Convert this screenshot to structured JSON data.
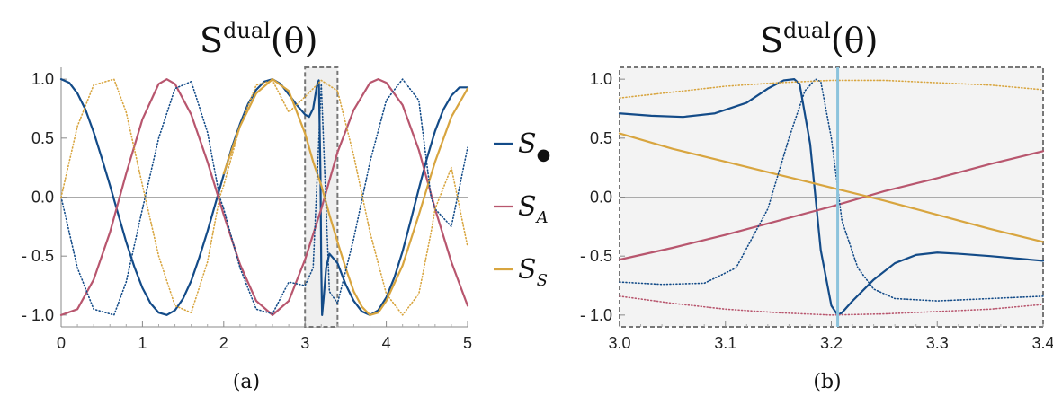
{
  "chart_data": [
    {
      "type": "line",
      "panel_caption": "(a)",
      "title_base": "S",
      "title_sup": "dual",
      "title_arg": "(θ)",
      "xlim": [
        0,
        5
      ],
      "ylim": [
        -1.1,
        1.1
      ],
      "x_ticks": [
        0,
        1,
        2,
        3,
        4,
        5
      ],
      "x_tick_labels": [
        "0",
        "1",
        "2",
        "3",
        "4",
        "5"
      ],
      "y_ticks": [
        1.0,
        0.5,
        0.0,
        -0.5,
        -1.0
      ],
      "y_tick_labels": [
        "1.0",
        "0.5",
        "0.0",
        "- 0.5",
        "- 1.0"
      ],
      "zoom_box": {
        "x": [
          3.0,
          3.4
        ],
        "y": [
          -1.1,
          1.1
        ]
      },
      "series": [
        {
          "color": "#134b88",
          "style": "solid",
          "x": [
            0,
            0.1,
            0.2,
            0.3,
            0.4,
            0.5,
            0.6,
            0.7,
            0.8,
            0.9,
            1.0,
            1.1,
            1.2,
            1.3,
            1.4,
            1.5,
            1.6,
            1.7,
            1.8,
            1.9,
            2.0,
            2.1,
            2.2,
            2.3,
            2.4,
            2.5,
            2.6,
            2.7,
            2.8,
            2.9,
            3.0,
            3.05,
            3.1,
            3.15,
            3.17,
            3.19,
            3.2,
            3.21,
            3.23,
            3.26,
            3.3,
            3.4,
            3.5,
            3.6,
            3.7,
            3.8,
            3.9,
            4.0,
            4.1,
            4.2,
            4.3,
            4.4,
            4.5,
            4.6,
            4.7,
            4.8,
            4.9,
            5.0
          ],
          "y": [
            1.0,
            0.97,
            0.88,
            0.74,
            0.55,
            0.33,
            0.1,
            -0.14,
            -0.38,
            -0.59,
            -0.77,
            -0.9,
            -0.98,
            -1.0,
            -0.96,
            -0.86,
            -0.71,
            -0.51,
            -0.29,
            -0.05,
            0.19,
            0.42,
            0.62,
            0.79,
            0.91,
            0.98,
            1.0,
            0.96,
            0.87,
            0.78,
            0.7,
            0.68,
            0.75,
            0.96,
            0.99,
            0.2,
            -0.6,
            -1.0,
            -0.85,
            -0.6,
            -0.48,
            -0.56,
            -0.74,
            -0.88,
            -0.97,
            -1.0,
            -0.96,
            -0.85,
            -0.68,
            -0.46,
            -0.2,
            0.07,
            0.33,
            0.56,
            0.74,
            0.86,
            0.93,
            0.93
          ]
        },
        {
          "color": "#b8566e",
          "style": "solid",
          "x": [
            0,
            0.2,
            0.4,
            0.6,
            0.8,
            1.0,
            1.2,
            1.3,
            1.4,
            1.6,
            1.8,
            2.0,
            2.2,
            2.4,
            2.6,
            2.8,
            3.0,
            3.2,
            3.4,
            3.6,
            3.8,
            3.9,
            4.0,
            4.2,
            4.4,
            4.6,
            4.8,
            5.0
          ],
          "y": [
            -1.0,
            -0.95,
            -0.7,
            -0.3,
            0.2,
            0.66,
            0.96,
            1.0,
            0.96,
            0.7,
            0.3,
            -0.15,
            -0.57,
            -0.88,
            -1.0,
            -0.88,
            -0.53,
            -0.1,
            0.38,
            0.74,
            0.97,
            1.0,
            0.97,
            0.78,
            0.4,
            -0.1,
            -0.55,
            -0.92
          ]
        },
        {
          "color": "#d8a53f",
          "style": "solid",
          "x": [
            2.0,
            2.2,
            2.4,
            2.6,
            2.8,
            3.0,
            3.1,
            3.2,
            3.3,
            3.4,
            3.5,
            3.6,
            3.7,
            3.8,
            3.9,
            4.0,
            4.2,
            4.4,
            4.6,
            4.8,
            5.0
          ],
          "y": [
            0.2,
            0.6,
            0.88,
            1.0,
            0.9,
            0.54,
            0.3,
            0.1,
            -0.15,
            -0.38,
            -0.6,
            -0.8,
            -0.93,
            -1.0,
            -0.98,
            -0.88,
            -0.58,
            -0.15,
            0.3,
            0.68,
            0.92
          ]
        },
        {
          "color": "#134b88",
          "style": "dotted",
          "x": [
            0,
            0.2,
            0.4,
            0.6,
            0.65,
            0.8,
            1.0,
            1.2,
            1.4,
            1.6,
            1.8,
            1.95,
            2.0,
            2.2,
            2.4,
            2.6,
            2.8,
            3.0,
            3.1,
            3.2,
            3.3,
            3.4,
            3.6,
            3.8,
            4.0,
            4.2,
            4.4,
            4.55,
            4.6,
            4.8,
            5.0
          ],
          "y": [
            0.0,
            -0.6,
            -0.95,
            -0.99,
            -1.0,
            -0.72,
            -0.1,
            0.5,
            0.92,
            0.98,
            0.55,
            0.0,
            -0.1,
            -0.6,
            -0.95,
            -0.99,
            -0.72,
            -0.75,
            -0.6,
            0.96,
            -0.8,
            -0.9,
            -0.35,
            0.3,
            0.82,
            1.0,
            0.82,
            0.0,
            -0.1,
            -0.25,
            0.42
          ]
        },
        {
          "color": "#d8a53f",
          "style": "dotted",
          "x": [
            0,
            0.2,
            0.4,
            0.6,
            0.65,
            0.8,
            1.0,
            1.2,
            1.4,
            1.6,
            1.8,
            1.95,
            2.0,
            2.2,
            2.4,
            2.6,
            2.8,
            3.0,
            3.2,
            3.4,
            3.6,
            3.8,
            4.0,
            4.2,
            4.4,
            4.55,
            4.6,
            4.8,
            5.0
          ],
          "y": [
            0.0,
            0.6,
            0.95,
            0.99,
            1.0,
            0.72,
            0.1,
            -0.5,
            -0.92,
            -0.98,
            -0.55,
            0.0,
            0.1,
            0.6,
            0.95,
            0.99,
            0.72,
            0.85,
            0.99,
            0.9,
            0.35,
            -0.3,
            -0.82,
            -1.0,
            -0.82,
            -0.3,
            -0.1,
            0.25,
            -0.42
          ]
        }
      ]
    },
    {
      "type": "line",
      "panel_caption": "(b)",
      "title_base": "S",
      "title_sup": "dual",
      "title_arg": "(θ)",
      "xlim": [
        3.0,
        3.4
      ],
      "ylim": [
        -1.1,
        1.1
      ],
      "x_ticks": [
        3.0,
        3.1,
        3.2,
        3.3,
        3.4
      ],
      "x_tick_labels": [
        "3.0",
        "3.1",
        "3.2",
        "3.3",
        "3.4"
      ],
      "y_ticks": [
        1.0,
        0.5,
        0.0,
        -0.5,
        -1.0
      ],
      "y_tick_labels": [
        "1.0",
        "0.5",
        "0.0",
        "- 0.5",
        "- 1.0"
      ],
      "vertical_marker_x": 3.206,
      "vertical_marker_color": "#8cc3dc",
      "series": [
        {
          "color": "#134b88",
          "style": "solid",
          "x": [
            3.0,
            3.03,
            3.06,
            3.09,
            3.12,
            3.14,
            3.155,
            3.165,
            3.17,
            3.18,
            3.19,
            3.2,
            3.206,
            3.21,
            3.22,
            3.24,
            3.26,
            3.28,
            3.3,
            3.32,
            3.35,
            3.4
          ],
          "y": [
            0.71,
            0.69,
            0.68,
            0.71,
            0.8,
            0.92,
            0.99,
            1.0,
            0.96,
            0.45,
            -0.45,
            -0.92,
            -1.0,
            -0.98,
            -0.88,
            -0.7,
            -0.56,
            -0.49,
            -0.47,
            -0.48,
            -0.5,
            -0.54
          ]
        },
        {
          "color": "#b8566e",
          "style": "solid",
          "x": [
            3.0,
            3.05,
            3.1,
            3.15,
            3.2,
            3.25,
            3.3,
            3.35,
            3.4
          ],
          "y": [
            -0.53,
            -0.43,
            -0.32,
            -0.2,
            -0.08,
            0.05,
            0.16,
            0.28,
            0.39
          ]
        },
        {
          "color": "#d8a53f",
          "style": "solid",
          "x": [
            3.0,
            3.05,
            3.1,
            3.15,
            3.2,
            3.25,
            3.3,
            3.35,
            3.4
          ],
          "y": [
            0.54,
            0.41,
            0.3,
            0.19,
            0.08,
            -0.03,
            -0.15,
            -0.27,
            -0.38
          ]
        },
        {
          "color": "#134b88",
          "style": "dotted",
          "x": [
            3.0,
            3.04,
            3.08,
            3.11,
            3.14,
            3.16,
            3.175,
            3.185,
            3.19,
            3.2,
            3.21,
            3.225,
            3.24,
            3.26,
            3.3,
            3.35,
            3.4
          ],
          "y": [
            -0.72,
            -0.74,
            -0.73,
            -0.6,
            -0.1,
            0.5,
            0.9,
            1.0,
            0.98,
            0.5,
            -0.2,
            -0.6,
            -0.78,
            -0.86,
            -0.88,
            -0.86,
            -0.84
          ]
        },
        {
          "color": "#d8a53f",
          "style": "dotted",
          "x": [
            3.0,
            3.05,
            3.1,
            3.15,
            3.2,
            3.25,
            3.3,
            3.35,
            3.4
          ],
          "y": [
            0.84,
            0.89,
            0.94,
            0.97,
            0.99,
            0.99,
            0.97,
            0.95,
            0.91
          ]
        },
        {
          "color": "#b8566e",
          "style": "dotted",
          "x": [
            3.0,
            3.05,
            3.1,
            3.15,
            3.2,
            3.25,
            3.3,
            3.35,
            3.4
          ],
          "y": [
            -0.84,
            -0.9,
            -0.95,
            -0.98,
            -1.0,
            -0.99,
            -0.97,
            -0.95,
            -0.91
          ]
        }
      ]
    }
  ],
  "legend": [
    {
      "symbol": "S",
      "subscript": "●",
      "color": "#134b88"
    },
    {
      "symbol": "S",
      "subscript": "A",
      "color": "#b8566e"
    },
    {
      "symbol": "S",
      "subscript": "S",
      "color": "#d8a53f"
    }
  ]
}
